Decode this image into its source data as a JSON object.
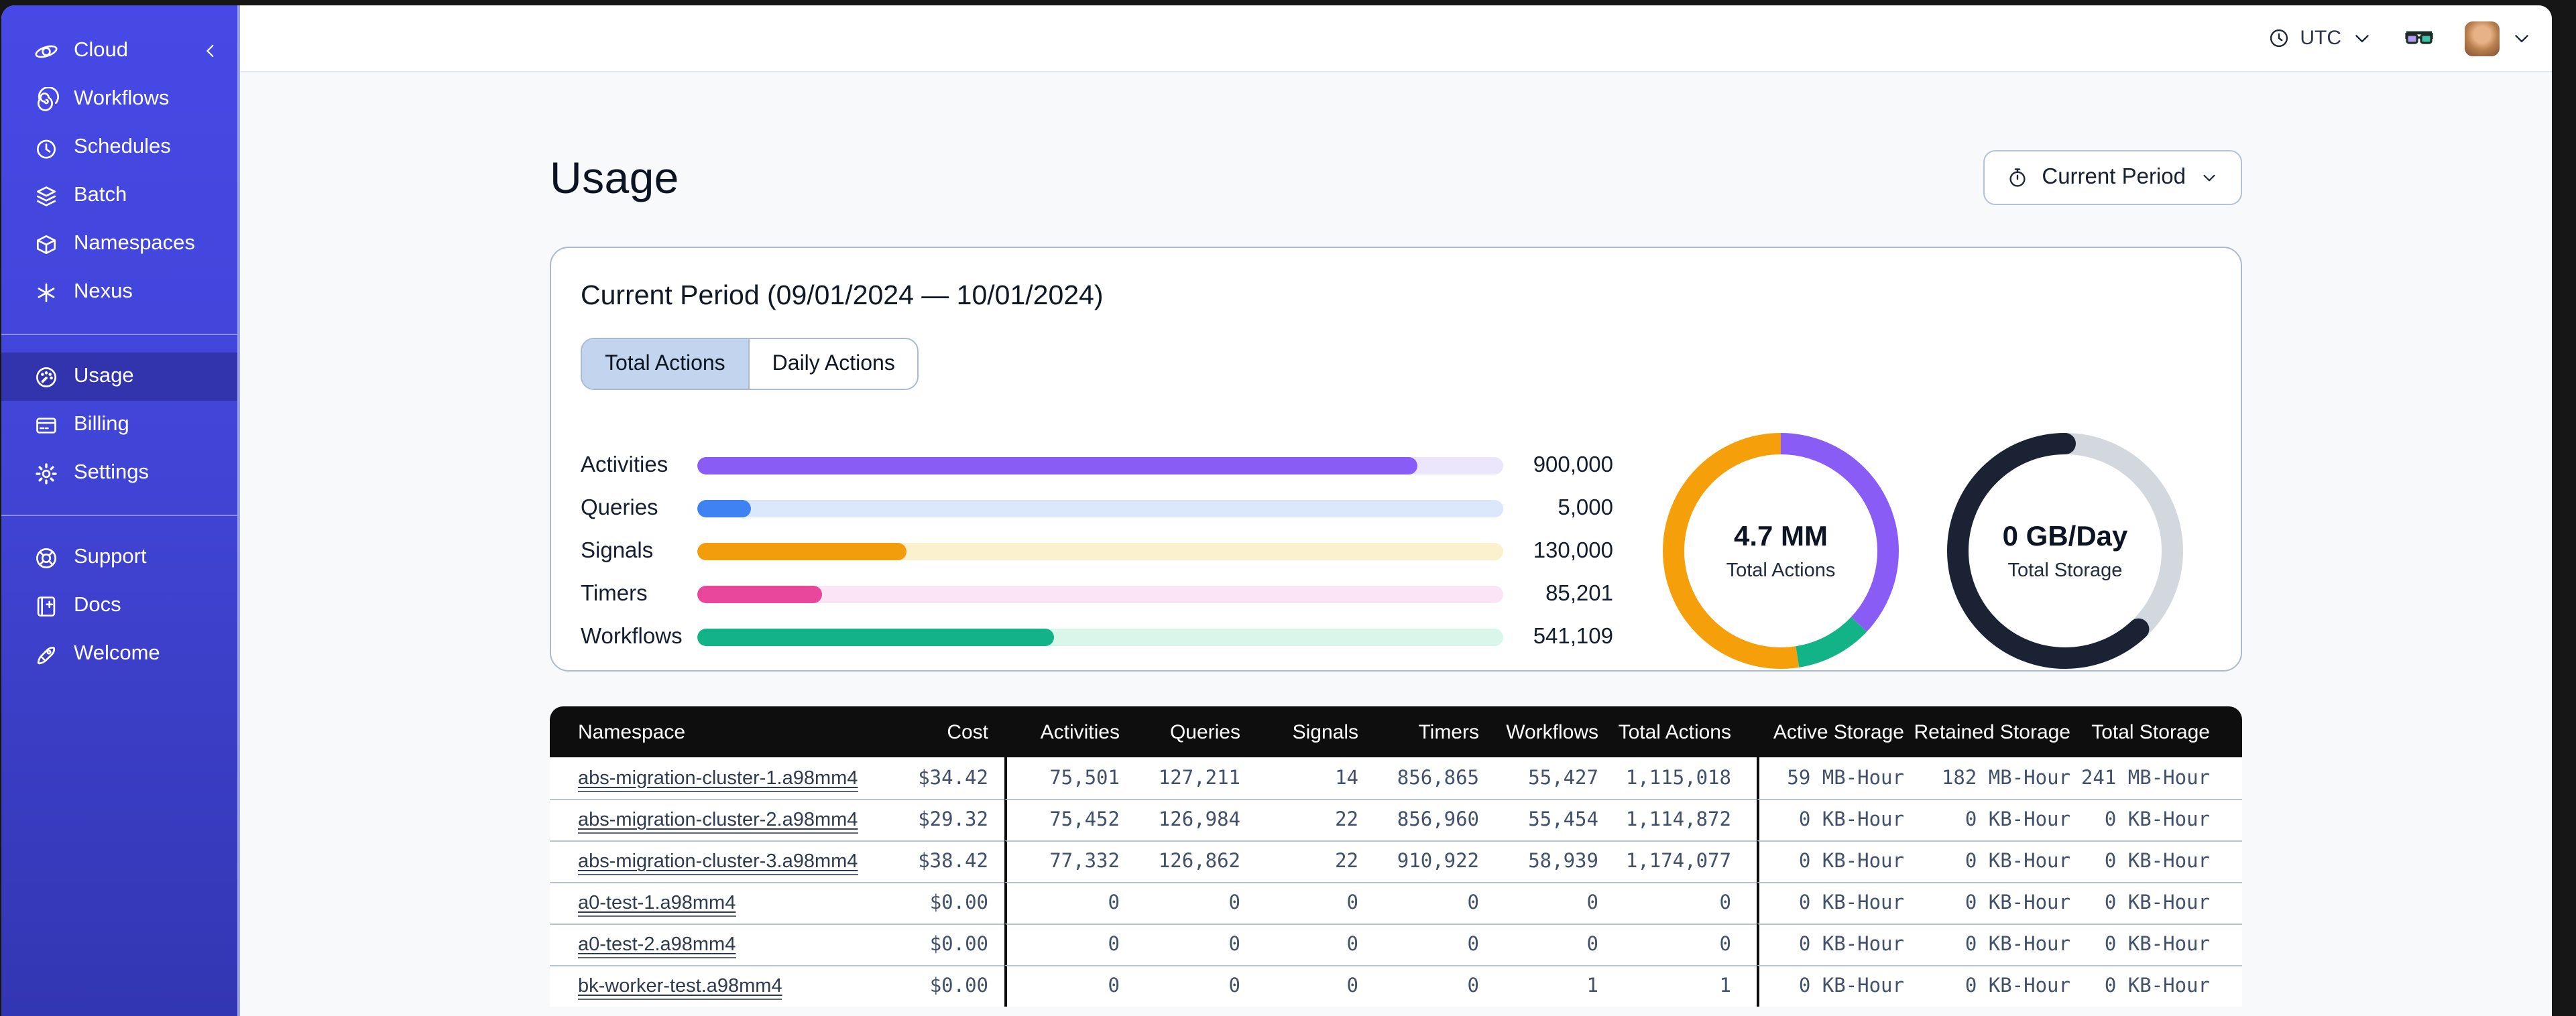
{
  "topbar": {
    "timezone": "UTC"
  },
  "sidebar": {
    "brand": {
      "label": "Cloud",
      "icon": "temporal-logo"
    },
    "groups": [
      {
        "items": [
          {
            "label": "Workflows",
            "icon": "workflows"
          },
          {
            "label": "Schedules",
            "icon": "schedules"
          },
          {
            "label": "Batch",
            "icon": "batch"
          },
          {
            "label": "Namespaces",
            "icon": "namespaces"
          },
          {
            "label": "Nexus",
            "icon": "nexus"
          }
        ]
      },
      {
        "items": [
          {
            "label": "Usage",
            "icon": "usage",
            "active": true
          },
          {
            "label": "Billing",
            "icon": "billing"
          },
          {
            "label": "Settings",
            "icon": "settings"
          }
        ]
      },
      {
        "items": [
          {
            "label": "Support",
            "icon": "support"
          },
          {
            "label": "Docs",
            "icon": "docs"
          },
          {
            "label": "Welcome",
            "icon": "welcome"
          }
        ]
      }
    ]
  },
  "page": {
    "title": "Usage",
    "period_button_label": "Current Period"
  },
  "usage_card": {
    "title": "Current Period (09/01/2024 — 10/01/2024)",
    "tabs": [
      {
        "label": "Total Actions",
        "active": true
      },
      {
        "label": "Daily Actions",
        "active": false
      }
    ],
    "bars": [
      {
        "label": "Activities",
        "value": "900,000",
        "fraction": 0.894,
        "color": "#8A5CF6",
        "track": "#ECE6FC"
      },
      {
        "label": "Queries",
        "value": "5,000",
        "fraction": 0.067,
        "color": "#3F82F2",
        "track": "#DBE7FA"
      },
      {
        "label": "Signals",
        "value": "130,000",
        "fraction": 0.26,
        "color": "#F29D0C",
        "track": "#FBF1CE"
      },
      {
        "label": "Timers",
        "value": "85,201",
        "fraction": 0.155,
        "color": "#E8479B",
        "track": "#FBE4F3"
      },
      {
        "label": "Workflows",
        "value": "541,109",
        "fraction": 0.443,
        "color": "#12B487",
        "track": "#D9F6EA"
      }
    ],
    "donuts": [
      {
        "value": "4.7 MM",
        "label": "Total Actions",
        "segments": [
          {
            "color": "#8A5CF6",
            "fraction": 0.37
          },
          {
            "color": "#12B487",
            "fraction": 0.105
          },
          {
            "color": "#F5A00B",
            "fraction": 0.525
          }
        ]
      },
      {
        "value": "0 GB/Day",
        "label": "Total Storage",
        "segments": [
          {
            "color": "#D3D7DE",
            "fraction": 0.38
          },
          {
            "color": "#1A2234",
            "fraction": 0.62,
            "cap": "round"
          }
        ]
      }
    ]
  },
  "table": {
    "columns": [
      "Namespace",
      "Cost",
      "Activities",
      "Queries",
      "Signals",
      "Timers",
      "Workflows",
      "Total Actions",
      "Active Storage",
      "Retained Storage",
      "Total Storage"
    ],
    "rows": [
      [
        "abs-migration-cluster-1.a98mm4",
        "$34.42",
        "75,501",
        "127,211",
        "14",
        "856,865",
        "55,427",
        "1,115,018",
        "59 MB-Hour",
        "182 MB-Hour",
        "241 MB-Hour"
      ],
      [
        "abs-migration-cluster-2.a98mm4",
        "$29.32",
        "75,452",
        "126,984",
        "22",
        "856,960",
        "55,454",
        "1,114,872",
        "0 KB-Hour",
        "0 KB-Hour",
        "0 KB-Hour"
      ],
      [
        "abs-migration-cluster-3.a98mm4",
        "$38.42",
        "77,332",
        "126,862",
        "22",
        "910,922",
        "58,939",
        "1,174,077",
        "0 KB-Hour",
        "0 KB-Hour",
        "0 KB-Hour"
      ],
      [
        "a0-test-1.a98mm4",
        "$0.00",
        "0",
        "0",
        "0",
        "0",
        "0",
        "0",
        "0 KB-Hour",
        "0 KB-Hour",
        "0 KB-Hour"
      ],
      [
        "a0-test-2.a98mm4",
        "$0.00",
        "0",
        "0",
        "0",
        "0",
        "0",
        "0",
        "0 KB-Hour",
        "0 KB-Hour",
        "0 KB-Hour"
      ],
      [
        "bk-worker-test.a98mm4",
        "$0.00",
        "0",
        "0",
        "0",
        "0",
        "1",
        "1",
        "0 KB-Hour",
        "0 KB-Hour",
        "0 KB-Hour"
      ]
    ]
  },
  "chart_data": [
    {
      "type": "bar",
      "title": "Total Actions by type",
      "categories": [
        "Activities",
        "Queries",
        "Signals",
        "Timers",
        "Workflows"
      ],
      "values": [
        900000,
        5000,
        130000,
        85201,
        541109
      ],
      "xlabel": "",
      "ylabel": "",
      "legend_position": "none",
      "grid": false
    },
    {
      "type": "pie",
      "title": "Total Actions",
      "center_value": "4.7 MM",
      "slices": [
        {
          "label": "purple-segment",
          "fraction": 0.37
        },
        {
          "label": "green-segment",
          "fraction": 0.105
        },
        {
          "label": "orange-segment",
          "fraction": 0.525
        }
      ]
    },
    {
      "type": "pie",
      "title": "Total Storage",
      "center_value": "0 GB/Day",
      "slices": [
        {
          "label": "gray-segment",
          "fraction": 0.38
        },
        {
          "label": "dark-segment",
          "fraction": 0.62
        }
      ]
    }
  ]
}
